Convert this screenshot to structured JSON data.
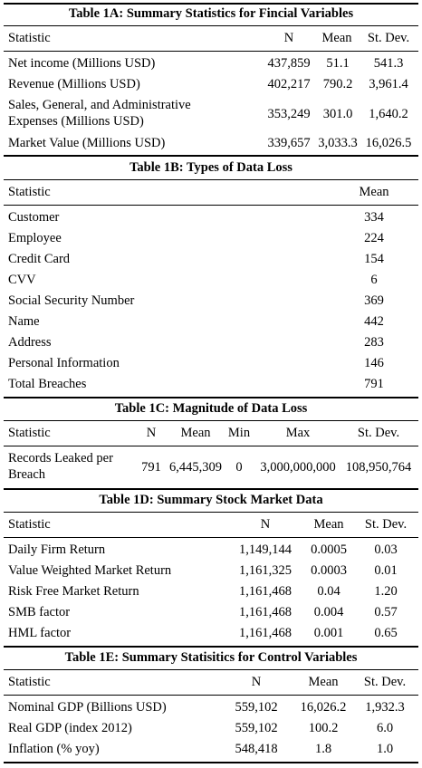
{
  "t1a": {
    "title": "Table 1A: Summary Statistics for Fincial Variables",
    "headers": [
      "Statistic",
      "N",
      "Mean",
      "St. Dev."
    ],
    "rows": [
      {
        "label": "Net income (Millions USD)",
        "n": "437,859",
        "mean": "51.1",
        "sd": "541.3"
      },
      {
        "label": "Revenue (Millions USD)",
        "n": "402,217",
        "mean": "790.2",
        "sd": "3,961.4"
      },
      {
        "label_l1": "Sales, General, and Administrative",
        "label_l2": "Expenses (Millions USD)",
        "n": "353,249",
        "mean": "301.0",
        "sd": "1,640.2"
      },
      {
        "label": "Market Value (Millions USD)",
        "n": "339,657",
        "mean": "3,033.3",
        "sd": "16,026.5"
      }
    ]
  },
  "t1b": {
    "title": "Table 1B: Types of Data Loss",
    "headers": [
      "Statistic",
      "Mean"
    ],
    "rows": [
      {
        "label": "Customer",
        "mean": "334"
      },
      {
        "label": "Employee",
        "mean": "224"
      },
      {
        "label": "Credit Card",
        "mean": "154"
      },
      {
        "label": "CVV",
        "mean": "6"
      },
      {
        "label": "Social Security Number",
        "mean": "369"
      },
      {
        "label": "Name",
        "mean": "442"
      },
      {
        "label": "Address",
        "mean": "283"
      },
      {
        "label": "Personal Information",
        "mean": "146"
      },
      {
        "label": "Total Breaches",
        "mean": "791"
      }
    ]
  },
  "t1c": {
    "title": "Table 1C: Magnitude of Data Loss",
    "headers": [
      "Statistic",
      "N",
      "Mean",
      "Min",
      "Max",
      "St. Dev."
    ],
    "rows": [
      {
        "label_l1": "Records Leaked per",
        "label_l2": "Breach",
        "n": "791",
        "mean": "6,445,309",
        "min": "0",
        "max": "3,000,000,000",
        "sd": "108,950,764"
      }
    ]
  },
  "t1d": {
    "title": "Table 1D: Summary Stock Market Data",
    "headers": [
      "Statistic",
      "N",
      "Mean",
      "St. Dev."
    ],
    "rows": [
      {
        "label": "Daily Firm Return",
        "n": "1,149,144",
        "mean": "0.0005",
        "sd": "0.03"
      },
      {
        "label": "Value Weighted Market Return",
        "n": "1,161,325",
        "mean": "0.0003",
        "sd": "0.01"
      },
      {
        "label": "Risk Free Market Return",
        "n": "1,161,468",
        "mean": "0.04",
        "sd": "1.20"
      },
      {
        "label": "SMB factor",
        "n": "1,161,468",
        "mean": "0.004",
        "sd": "0.57"
      },
      {
        "label": "HML factor",
        "n": "1,161,468",
        "mean": "0.001",
        "sd": "0.65"
      }
    ]
  },
  "t1e": {
    "title": "Table 1E: Summary Statisitics for Control Variables",
    "headers": [
      "Statistic",
      "N",
      "Mean",
      "St. Dev."
    ],
    "rows": [
      {
        "label": "Nominal GDP (Billions USD)",
        "n": "559,102",
        "mean": "16,026.2",
        "sd": "1,932.3"
      },
      {
        "label": "Real GDP (index 2012)",
        "n": "559,102",
        "mean": "100.2",
        "sd": "6.0"
      },
      {
        "label": "Inflation (% yoy)",
        "n": "548,418",
        "mean": "1.8",
        "sd": "1.0"
      }
    ]
  }
}
